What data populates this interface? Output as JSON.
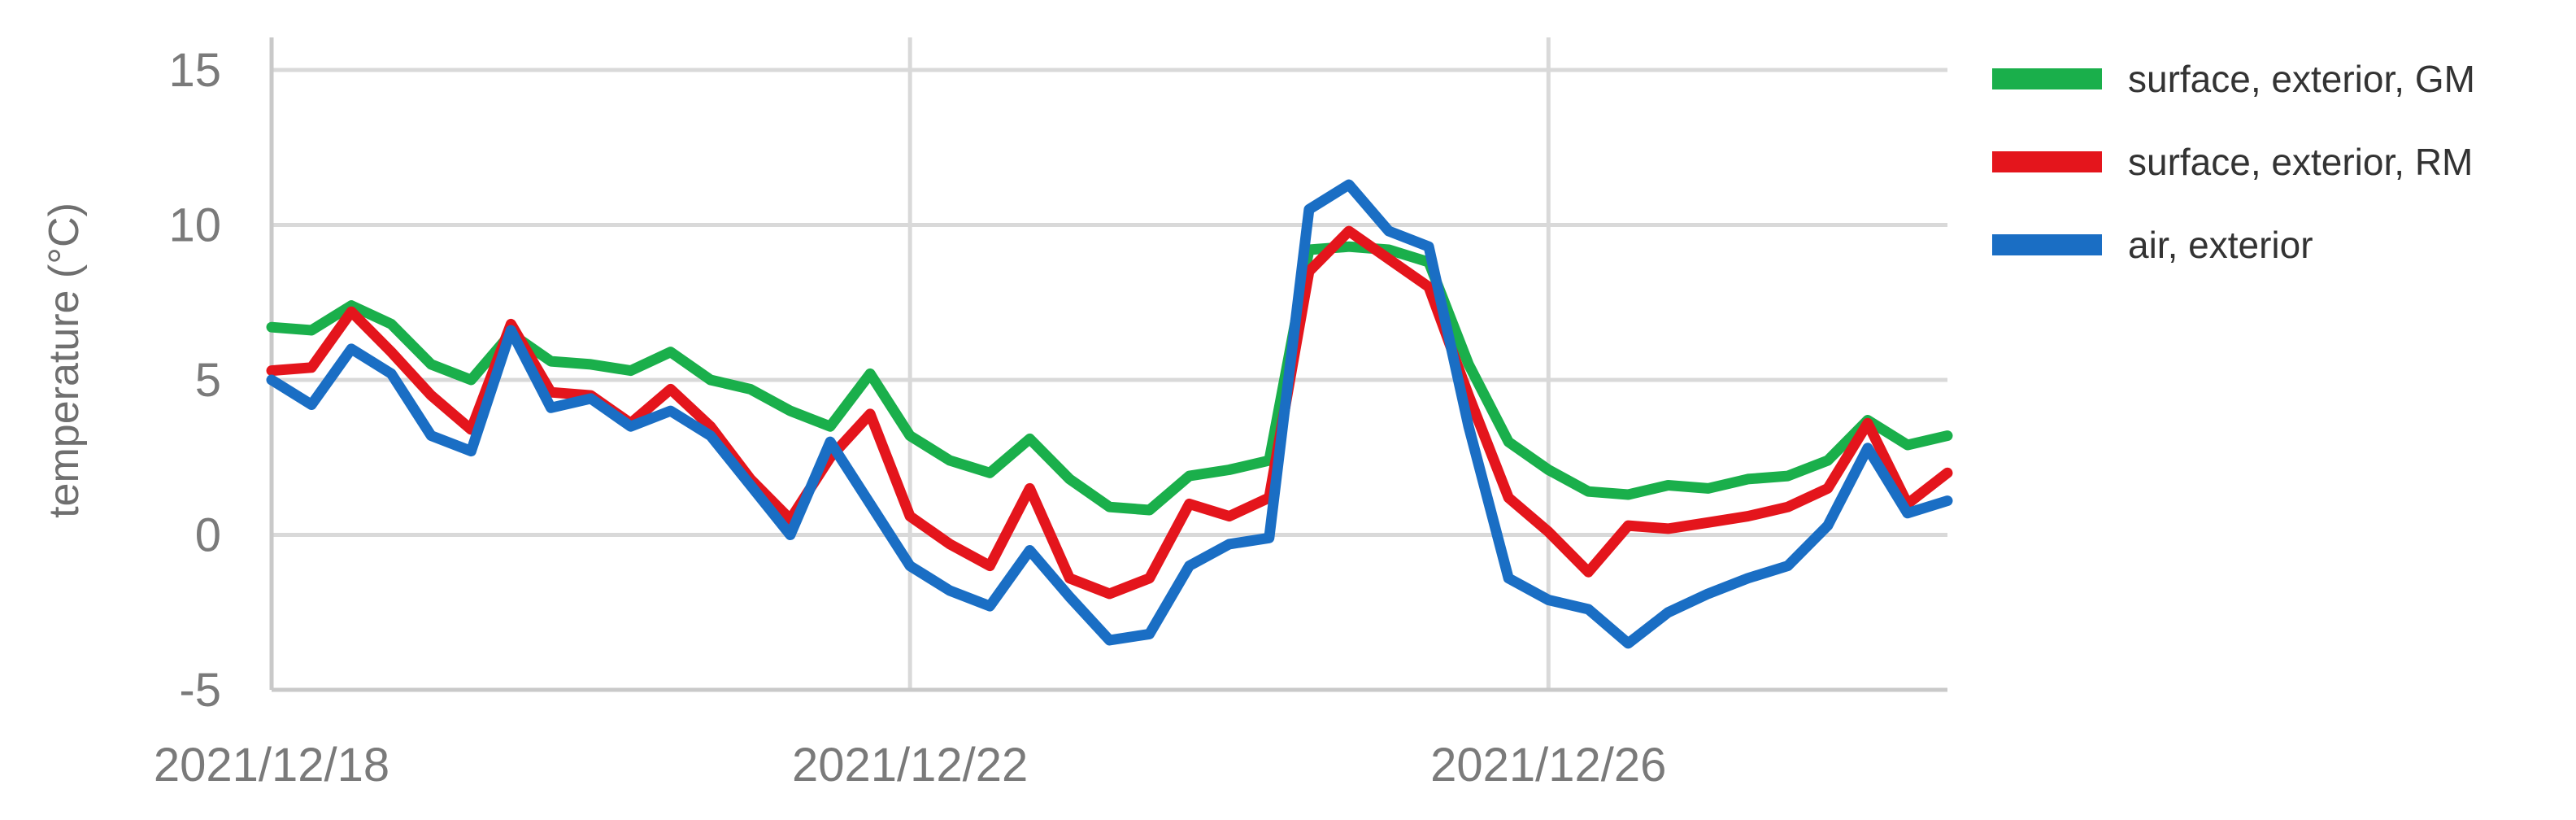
{
  "chart_data": {
    "type": "line",
    "title": "",
    "xlabel": "",
    "ylabel": "temperature (°C)",
    "ylim": [
      -5,
      15
    ],
    "xlim": [
      "2021/12/18",
      "2021/12/28 12:00"
    ],
    "yticks": [
      15,
      10,
      5,
      0,
      -5
    ],
    "xticks": [
      "2021/12/18",
      "2021/12/22",
      "2021/12/26"
    ],
    "grid": true,
    "legend_position": "right",
    "series": [
      {
        "name": "surface, exterior, GM",
        "color": "#1aaf4b",
        "x": [
          "2021/12/18 00:00",
          "2021/12/18 06:00",
          "2021/12/18 12:00",
          "2021/12/18 18:00",
          "2021/12/19 00:00",
          "2021/12/19 06:00",
          "2021/12/19 12:00",
          "2021/12/19 18:00",
          "2021/12/20 00:00",
          "2021/12/20 06:00",
          "2021/12/20 12:00",
          "2021/12/20 18:00",
          "2021/12/21 00:00",
          "2021/12/21 06:00",
          "2021/12/21 12:00",
          "2021/12/21 18:00",
          "2021/12/22 00:00",
          "2021/12/22 06:00",
          "2021/12/22 12:00",
          "2021/12/22 18:00",
          "2021/12/23 00:00",
          "2021/12/23 06:00",
          "2021/12/23 12:00",
          "2021/12/23 18:00",
          "2021/12/24 00:00",
          "2021/12/24 06:00",
          "2021/12/24 12:00",
          "2021/12/24 18:00",
          "2021/12/25 00:00",
          "2021/12/25 06:00",
          "2021/12/25 12:00",
          "2021/12/25 18:00",
          "2021/12/26 00:00",
          "2021/12/26 06:00",
          "2021/12/26 12:00",
          "2021/12/26 18:00",
          "2021/12/27 00:00",
          "2021/12/27 06:00",
          "2021/12/27 12:00",
          "2021/12/27 18:00",
          "2021/12/28 00:00",
          "2021/12/28 06:00",
          "2021/12/28 12:00"
        ],
        "values": [
          6.7,
          6.6,
          7.4,
          6.8,
          5.5,
          5.0,
          6.5,
          5.6,
          5.5,
          5.3,
          5.9,
          5.0,
          4.7,
          4.0,
          3.5,
          5.2,
          3.2,
          2.4,
          2.0,
          3.1,
          1.8,
          0.9,
          0.8,
          1.9,
          2.1,
          2.4,
          9.2,
          9.3,
          9.2,
          8.8,
          5.5,
          3.0,
          2.1,
          1.4,
          1.3,
          1.6,
          1.5,
          1.8,
          1.9,
          2.4,
          3.7,
          2.9,
          3.2
        ]
      },
      {
        "name": "surface, exterior, RM",
        "color": "#e4151c",
        "x": [
          "2021/12/18 00:00",
          "2021/12/18 06:00",
          "2021/12/18 12:00",
          "2021/12/18 18:00",
          "2021/12/19 00:00",
          "2021/12/19 06:00",
          "2021/12/19 12:00",
          "2021/12/19 18:00",
          "2021/12/20 00:00",
          "2021/12/20 06:00",
          "2021/12/20 12:00",
          "2021/12/20 18:00",
          "2021/12/21 00:00",
          "2021/12/21 06:00",
          "2021/12/21 12:00",
          "2021/12/21 18:00",
          "2021/12/22 00:00",
          "2021/12/22 06:00",
          "2021/12/22 12:00",
          "2021/12/22 18:00",
          "2021/12/23 00:00",
          "2021/12/23 06:00",
          "2021/12/23 12:00",
          "2021/12/23 18:00",
          "2021/12/24 00:00",
          "2021/12/24 06:00",
          "2021/12/24 12:00",
          "2021/12/24 18:00",
          "2021/12/25 00:00",
          "2021/12/25 06:00",
          "2021/12/25 12:00",
          "2021/12/25 18:00",
          "2021/12/26 00:00",
          "2021/12/26 06:00",
          "2021/12/26 12:00",
          "2021/12/26 18:00",
          "2021/12/27 00:00",
          "2021/12/27 06:00",
          "2021/12/27 12:00",
          "2021/12/27 18:00",
          "2021/12/28 00:00",
          "2021/12/28 06:00",
          "2021/12/28 12:00"
        ],
        "values": [
          5.3,
          5.4,
          7.2,
          5.9,
          4.5,
          3.4,
          6.8,
          4.6,
          4.5,
          3.6,
          4.7,
          3.5,
          1.8,
          0.5,
          2.5,
          3.9,
          0.6,
          -0.3,
          -1.0,
          1.5,
          -1.4,
          -1.9,
          -1.4,
          1.0,
          0.6,
          1.2,
          8.5,
          9.8,
          8.9,
          8.0,
          4.5,
          1.2,
          0.1,
          -1.2,
          0.3,
          0.2,
          0.4,
          0.6,
          0.9,
          1.5,
          3.6,
          1.0,
          2.0
        ]
      },
      {
        "name": "air, exterior",
        "color": "#1a6ec4",
        "x": [
          "2021/12/18 00:00",
          "2021/12/18 06:00",
          "2021/12/18 12:00",
          "2021/12/18 18:00",
          "2021/12/19 00:00",
          "2021/12/19 06:00",
          "2021/12/19 12:00",
          "2021/12/19 18:00",
          "2021/12/20 00:00",
          "2021/12/20 06:00",
          "2021/12/20 12:00",
          "2021/12/20 18:00",
          "2021/12/21 00:00",
          "2021/12/21 06:00",
          "2021/12/21 12:00",
          "2021/12/21 18:00",
          "2021/12/22 00:00",
          "2021/12/22 06:00",
          "2021/12/22 12:00",
          "2021/12/22 18:00",
          "2021/12/23 00:00",
          "2021/12/23 06:00",
          "2021/12/23 12:00",
          "2021/12/23 18:00",
          "2021/12/24 00:00",
          "2021/12/24 06:00",
          "2021/12/24 12:00",
          "2021/12/24 18:00",
          "2021/12/25 00:00",
          "2021/12/25 06:00",
          "2021/12/25 12:00",
          "2021/12/25 18:00",
          "2021/12/26 00:00",
          "2021/12/26 06:00",
          "2021/12/26 12:00",
          "2021/12/26 18:00",
          "2021/12/27 00:00",
          "2021/12/27 06:00",
          "2021/12/27 12:00",
          "2021/12/27 18:00",
          "2021/12/28 00:00",
          "2021/12/28 06:00",
          "2021/12/28 12:00"
        ],
        "values": [
          5.0,
          4.2,
          6.0,
          5.2,
          3.2,
          2.7,
          6.6,
          4.1,
          4.4,
          3.5,
          4.0,
          3.2,
          1.6,
          0.0,
          3.0,
          1.0,
          -1.0,
          -1.8,
          -2.3,
          -0.5,
          -2.0,
          -3.4,
          -3.2,
          -1.0,
          -0.3,
          -0.1,
          10.5,
          11.3,
          9.8,
          9.3,
          3.5,
          -1.4,
          -2.1,
          -2.4,
          -3.5,
          -2.5,
          -1.9,
          -1.4,
          -1.0,
          0.3,
          2.8,
          0.7,
          1.1
        ]
      }
    ]
  }
}
